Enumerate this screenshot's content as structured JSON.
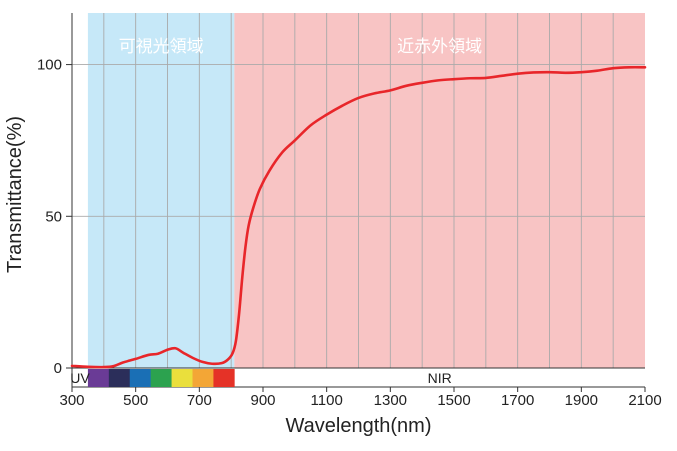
{
  "chart_data": {
    "type": "line",
    "xlabel": "Wavelength(nm)",
    "ylabel": "Transmittance(%)",
    "xlim": [
      300,
      2100
    ],
    "ylim": [
      0,
      117
    ],
    "x_ticks": [
      300,
      500,
      700,
      900,
      1100,
      1300,
      1500,
      1700,
      1900,
      2100
    ],
    "y_ticks": [
      0,
      50,
      100
    ],
    "grid": true,
    "regions": [
      {
        "label": "可視光領域",
        "from": 350,
        "to": 810,
        "color": "#c6e8f8"
      },
      {
        "label": "近赤外領域",
        "from": 810,
        "to": 2100,
        "color": "#f8c4c4"
      }
    ],
    "band_labels": [
      {
        "text": "UV",
        "from": 300,
        "to": 350
      },
      {
        "text": "NIR",
        "from": 810,
        "to": 2100
      }
    ],
    "spectrum_colors": [
      "#6a3b96",
      "#2b2e5a",
      "#1a6fb5",
      "#2ca24f",
      "#eadf3c",
      "#f3a636",
      "#e53227"
    ],
    "series": [
      {
        "color": "#e8262a",
        "points": [
          [
            300,
            0.7
          ],
          [
            350,
            0.4
          ],
          [
            400,
            0.3
          ],
          [
            430,
            0.6
          ],
          [
            460,
            1.8
          ],
          [
            500,
            3.0
          ],
          [
            540,
            4.3
          ],
          [
            570,
            4.7
          ],
          [
            600,
            6.0
          ],
          [
            625,
            6.5
          ],
          [
            650,
            5.0
          ],
          [
            680,
            3.3
          ],
          [
            710,
            2.0
          ],
          [
            740,
            1.4
          ],
          [
            770,
            1.6
          ],
          [
            790,
            2.8
          ],
          [
            805,
            5.0
          ],
          [
            815,
            9.0
          ],
          [
            825,
            18
          ],
          [
            835,
            30
          ],
          [
            845,
            40
          ],
          [
            855,
            47
          ],
          [
            870,
            53
          ],
          [
            890,
            59
          ],
          [
            920,
            65
          ],
          [
            960,
            71
          ],
          [
            1000,
            75
          ],
          [
            1050,
            80
          ],
          [
            1100,
            83.5
          ],
          [
            1150,
            86.5
          ],
          [
            1200,
            89
          ],
          [
            1250,
            90.5
          ],
          [
            1300,
            91.5
          ],
          [
            1350,
            93
          ],
          [
            1400,
            94
          ],
          [
            1450,
            94.8
          ],
          [
            1500,
            95.2
          ],
          [
            1550,
            95.5
          ],
          [
            1600,
            95.6
          ],
          [
            1650,
            96.3
          ],
          [
            1700,
            97
          ],
          [
            1750,
            97.4
          ],
          [
            1800,
            97.5
          ],
          [
            1850,
            97.3
          ],
          [
            1900,
            97.5
          ],
          [
            1950,
            98
          ],
          [
            2000,
            98.8
          ],
          [
            2050,
            99.1
          ],
          [
            2100,
            99.1
          ]
        ]
      }
    ]
  }
}
